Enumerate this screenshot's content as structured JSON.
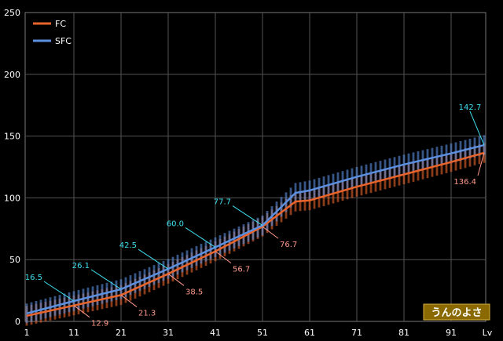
{
  "colors": {
    "background": "#000000",
    "grid": "#555555",
    "axis_text": "#ffffff",
    "fc": "#e8642a",
    "sfc": "#5b8fe0",
    "fc_label": "#ff9a8a",
    "sfc_label": "#3fe0f0",
    "watermark_bg": "#8a6a00"
  },
  "chart_data": {
    "type": "line",
    "title": "",
    "xlabel": "Lv",
    "ylabel": "",
    "xlim": [
      1,
      98
    ],
    "ylim": [
      0,
      250
    ],
    "x_ticks": [
      "1",
      "11",
      "21",
      "31",
      "41",
      "51",
      "61",
      "71",
      "81",
      "91",
      "Lv"
    ],
    "y_ticks": [
      "0",
      "50",
      "100",
      "150",
      "200",
      "250"
    ],
    "grid": true,
    "legend": "top-left",
    "x": [
      1,
      11,
      21,
      31,
      41,
      51,
      58,
      61,
      71,
      81,
      91,
      98
    ],
    "series": [
      {
        "name": "FC",
        "color": "#e8642a",
        "values": [
          4.5,
          12.9,
          21.3,
          38.5,
          56.7,
          76.7,
          97.0,
          98.0,
          109.0,
          119.0,
          129.0,
          136.4
        ],
        "spread": 8
      },
      {
        "name": "SFC",
        "color": "#5b8fe0",
        "values": [
          6.5,
          16.5,
          26.1,
          42.5,
          60.0,
          77.7,
          104.0,
          106.0,
          117.0,
          127.0,
          136.0,
          142.7
        ],
        "spread": 8
      }
    ],
    "annotations": [
      {
        "series": "SFC",
        "x": 11,
        "y": 16.5,
        "text": "16.5",
        "color": "#3fe0f0"
      },
      {
        "series": "SFC",
        "x": 21,
        "y": 26.1,
        "text": "26.1",
        "color": "#3fe0f0"
      },
      {
        "series": "SFC",
        "x": 31,
        "y": 42.5,
        "text": "42.5",
        "color": "#3fe0f0"
      },
      {
        "series": "SFC",
        "x": 41,
        "y": 60.0,
        "text": "60.0",
        "color": "#3fe0f0"
      },
      {
        "series": "SFC",
        "x": 51,
        "y": 77.7,
        "text": "77.7",
        "color": "#3fe0f0"
      },
      {
        "series": "SFC",
        "x": 98,
        "y": 142.7,
        "text": "142.7",
        "color": "#3fe0f0"
      },
      {
        "series": "FC",
        "x": 11,
        "y": 12.9,
        "text": "12.9",
        "color": "#ff9a8a"
      },
      {
        "series": "FC",
        "x": 21,
        "y": 21.3,
        "text": "21.3",
        "color": "#ff9a8a"
      },
      {
        "series": "FC",
        "x": 31,
        "y": 38.5,
        "text": "38.5",
        "color": "#ff9a8a"
      },
      {
        "series": "FC",
        "x": 41,
        "y": 56.7,
        "text": "56.7",
        "color": "#ff9a8a"
      },
      {
        "series": "FC",
        "x": 51,
        "y": 76.7,
        "text": "76.7",
        "color": "#ff9a8a"
      },
      {
        "series": "FC",
        "x": 98,
        "y": 136.4,
        "text": "136.4",
        "color": "#ff9a8a"
      }
    ],
    "watermark": "うんのよさ"
  }
}
